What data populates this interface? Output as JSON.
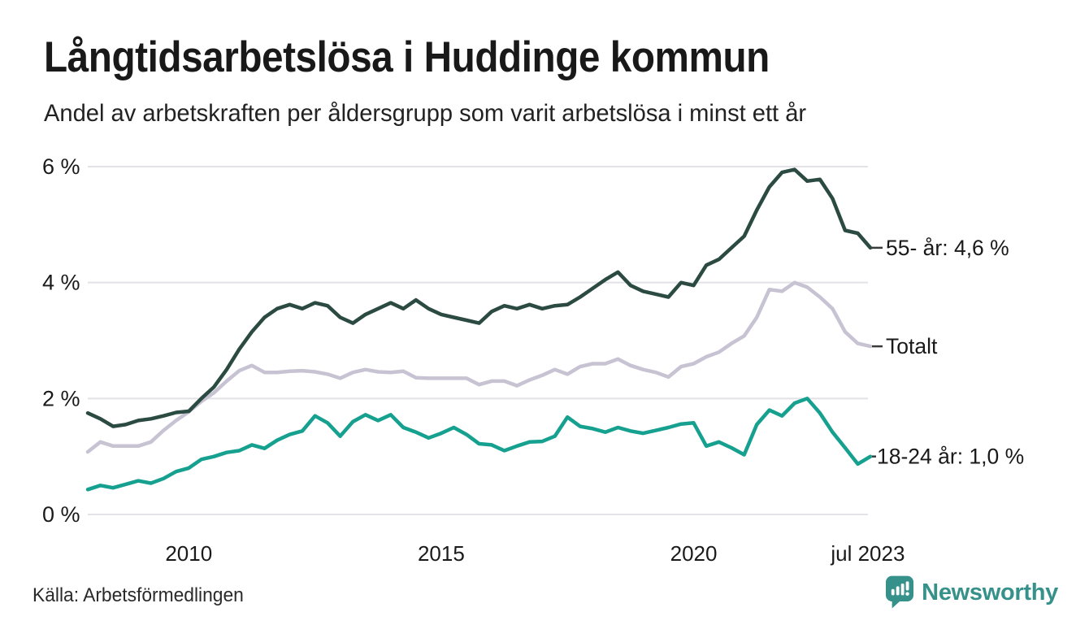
{
  "header": {
    "title": "Långtidsarbetslösa i Huddinge kommun",
    "subtitle": "Andel av arbetskraften per åldersgrupp som varit arbetslösa i minst ett år"
  },
  "footer": {
    "source": "Källa: Arbetsförmedlingen",
    "brand": "Newsworthy"
  },
  "colors": {
    "series_55": "#2b4a41",
    "series_total": "#c7c3d3",
    "series_18_24": "#16a08f",
    "grid": "#e2e2e7",
    "tick_text": "#1a1a1a",
    "leader_dash": "#3a3a3a",
    "brand_teal": "#35918a"
  },
  "chart_data": {
    "type": "line",
    "title": "Långtidsarbetslösa i Huddinge kommun",
    "subtitle": "Andel av arbetskraften per åldersgrupp som varit arbetslösa i minst ett år",
    "xlabel": "",
    "ylabel": "",
    "xlim": [
      2008,
      2023.5
    ],
    "ylim": [
      0,
      6
    ],
    "grid": "horizontal-only",
    "legend": "end-of-line-labels",
    "x_unit": "year (monthly data, jan 2008 – jul 2023, sampled quarterly)",
    "y_unit": "percent of labour force",
    "x": [
      2008,
      2008.25,
      2008.5,
      2008.75,
      2009,
      2009.25,
      2009.5,
      2009.75,
      2010,
      2010.25,
      2010.5,
      2010.75,
      2011,
      2011.25,
      2011.5,
      2011.75,
      2012,
      2012.25,
      2012.5,
      2012.75,
      2013,
      2013.25,
      2013.5,
      2013.75,
      2014,
      2014.25,
      2014.5,
      2014.75,
      2015,
      2015.25,
      2015.5,
      2015.75,
      2016,
      2016.25,
      2016.5,
      2016.75,
      2017,
      2017.25,
      2017.5,
      2017.75,
      2018,
      2018.25,
      2018.5,
      2018.75,
      2019,
      2019.25,
      2019.5,
      2019.75,
      2020,
      2020.25,
      2020.5,
      2020.75,
      2021,
      2021.25,
      2021.5,
      2021.75,
      2022,
      2022.25,
      2022.5,
      2022.75,
      2023,
      2023.25,
      2023.5
    ],
    "series": [
      {
        "name": "55- år",
        "end_label": "55- år: 4,6 %",
        "final_value": 4.6,
        "color_key": "series_55",
        "values": [
          1.75,
          1.65,
          1.52,
          1.55,
          1.62,
          1.65,
          1.7,
          1.76,
          1.78,
          2.0,
          2.2,
          2.5,
          2.85,
          3.15,
          3.4,
          3.55,
          3.62,
          3.55,
          3.65,
          3.6,
          3.4,
          3.3,
          3.45,
          3.55,
          3.65,
          3.55,
          3.7,
          3.55,
          3.45,
          3.4,
          3.35,
          3.3,
          3.5,
          3.6,
          3.55,
          3.62,
          3.55,
          3.6,
          3.62,
          3.75,
          3.9,
          4.05,
          4.18,
          3.95,
          3.85,
          3.8,
          3.75,
          4.0,
          3.95,
          4.3,
          4.4,
          4.6,
          4.8,
          5.25,
          5.65,
          5.9,
          5.95,
          5.75,
          5.78,
          5.45,
          4.9,
          4.85,
          4.6
        ]
      },
      {
        "name": "Totalt",
        "end_label": "Totalt",
        "final_value": 2.9,
        "color_key": "series_total",
        "values": [
          1.08,
          1.25,
          1.18,
          1.18,
          1.18,
          1.25,
          1.45,
          1.62,
          1.77,
          1.95,
          2.1,
          2.3,
          2.48,
          2.57,
          2.45,
          2.45,
          2.47,
          2.48,
          2.46,
          2.42,
          2.35,
          2.45,
          2.5,
          2.46,
          2.45,
          2.47,
          2.36,
          2.35,
          2.35,
          2.35,
          2.35,
          2.24,
          2.3,
          2.3,
          2.22,
          2.32,
          2.4,
          2.5,
          2.42,
          2.55,
          2.6,
          2.6,
          2.68,
          2.57,
          2.5,
          2.45,
          2.37,
          2.55,
          2.6,
          2.72,
          2.8,
          2.95,
          3.08,
          3.4,
          3.88,
          3.85,
          4.0,
          3.92,
          3.75,
          3.55,
          3.15,
          2.95,
          2.9
        ]
      },
      {
        "name": "18-24 år",
        "end_label": "18-24 år: 1,0 %",
        "final_value": 1.0,
        "color_key": "series_18_24",
        "values": [
          0.43,
          0.5,
          0.46,
          0.52,
          0.58,
          0.54,
          0.62,
          0.74,
          0.8,
          0.95,
          1.0,
          1.07,
          1.1,
          1.2,
          1.14,
          1.28,
          1.38,
          1.44,
          1.7,
          1.58,
          1.35,
          1.6,
          1.72,
          1.62,
          1.72,
          1.5,
          1.42,
          1.32,
          1.4,
          1.5,
          1.38,
          1.22,
          1.2,
          1.1,
          1.18,
          1.25,
          1.26,
          1.35,
          1.68,
          1.52,
          1.48,
          1.42,
          1.5,
          1.44,
          1.4,
          1.45,
          1.5,
          1.56,
          1.58,
          1.18,
          1.25,
          1.15,
          1.03,
          1.55,
          1.8,
          1.7,
          1.92,
          2.0,
          1.75,
          1.42,
          1.15,
          0.87,
          1.0
        ]
      }
    ],
    "x_ticks": [
      {
        "value": 2010,
        "label": "2010"
      },
      {
        "value": 2015,
        "label": "2015"
      },
      {
        "value": 2020,
        "label": "2020"
      },
      {
        "value": 2023.45,
        "label": "jul 2023"
      }
    ],
    "y_ticks": [
      {
        "value": 0,
        "label": "0 %"
      },
      {
        "value": 2,
        "label": "2 %"
      },
      {
        "value": 4,
        "label": "4 %"
      },
      {
        "value": 6,
        "label": "6 %"
      }
    ]
  }
}
